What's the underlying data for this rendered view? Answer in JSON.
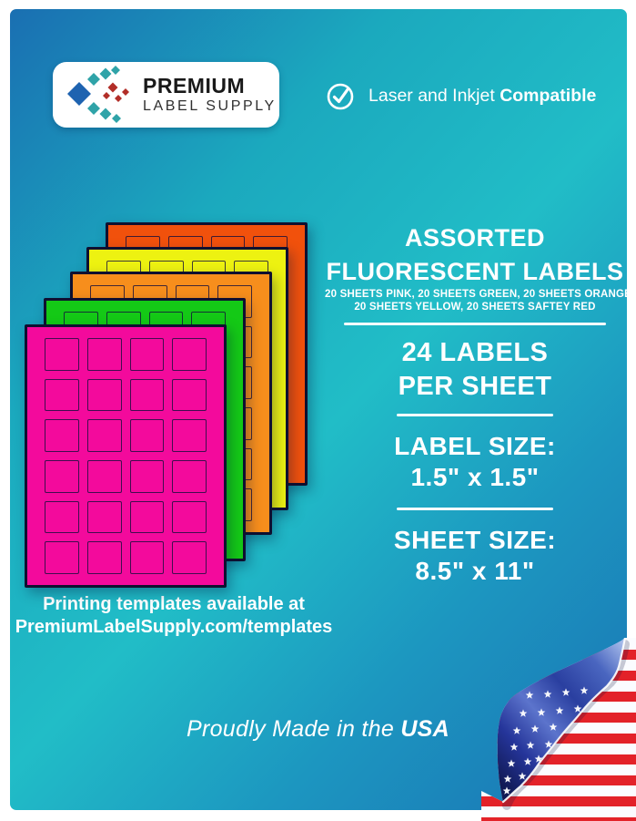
{
  "brand": {
    "name_line1": "PREMIUM",
    "name_line2": "LABEL SUPPLY"
  },
  "badge": {
    "text_regular": "Laser and Inkjet",
    "text_bold": "Compatible"
  },
  "headline": {
    "title_line1": "ASSORTED",
    "title_line2": "FLUORESCENT LABELS",
    "subtitle_line1": "20 SHEETS PINK, 20 SHEETS GREEN, 20 SHEETS ORANGE,",
    "subtitle_line2": "20 SHEETS YELLOW, 20 SHEETS SAFTEY RED"
  },
  "specs": {
    "count_line1": "24 LABELS",
    "count_line2": "PER SHEET",
    "label_size_heading": "LABEL SIZE:",
    "label_size_value": "1.5\" x 1.5\"",
    "sheet_size_heading": "SHEET SIZE:",
    "sheet_size_value": "8.5\" x 11\""
  },
  "templates_note": {
    "line1": "Printing templates available at",
    "line2": "PremiumLabelSupply.com/templates"
  },
  "made_in": {
    "text_regular": "Proudly Made in the",
    "text_bold": "USA"
  },
  "sheets": {
    "labels_per_sheet": 24,
    "grid_columns": 4,
    "grid_rows": 6,
    "stack": [
      {
        "name": "safety-red",
        "color": "#F1510C"
      },
      {
        "name": "yellow",
        "color": "#EDF211"
      },
      {
        "name": "orange",
        "color": "#F78E1C"
      },
      {
        "name": "green",
        "color": "#14C916"
      },
      {
        "name": "pink",
        "color": "#F30A9C"
      }
    ]
  },
  "colors": {
    "background_blue": "#1A6FB2",
    "background_teal": "#21BDC7",
    "frame_white": "#FFFFFF",
    "logo_blue": "#1E63B0",
    "logo_teal": "#2FA3A8",
    "logo_red": "#B22E28",
    "flag_red": "#E32229",
    "flag_navy": "#2A3FA0"
  }
}
